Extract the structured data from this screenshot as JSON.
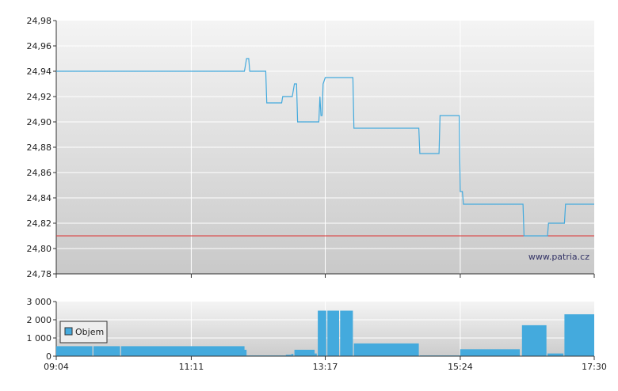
{
  "chart_data": [
    {
      "type": "line",
      "title": "",
      "xlabel": "",
      "ylabel": "",
      "x_ticks": [
        "09:04",
        "11:11",
        "13:17",
        "15:24",
        "17:30"
      ],
      "ylim": [
        24.78,
        24.98
      ],
      "y_ticks": [
        "24,78",
        "24,80",
        "24,82",
        "24,84",
        "24,86",
        "24,88",
        "24,90",
        "24,92",
        "24,94",
        "24,96",
        "24,98"
      ],
      "grid": true,
      "reference_line": {
        "value": 24.81,
        "color": "#dd3333"
      },
      "watermark": "www.patria.cz",
      "series": [
        {
          "color": "#44aadd",
          "points": [
            [
              "09:04",
              24.94
            ],
            [
              "12:01",
              24.94
            ],
            [
              "12:03",
              24.95
            ],
            [
              "12:05",
              24.95
            ],
            [
              "12:06",
              24.94
            ],
            [
              "12:21",
              24.94
            ],
            [
              "12:22",
              24.915
            ],
            [
              "12:36",
              24.915
            ],
            [
              "12:37",
              24.92
            ],
            [
              "12:46",
              24.92
            ],
            [
              "12:48",
              24.93
            ],
            [
              "12:50",
              24.93
            ],
            [
              "12:51",
              24.9
            ],
            [
              "13:11",
              24.9
            ],
            [
              "13:12",
              24.92
            ],
            [
              "13:13",
              24.905
            ],
            [
              "13:14",
              24.905
            ],
            [
              "13:15",
              24.93
            ],
            [
              "13:17",
              24.935
            ],
            [
              "13:43",
              24.935
            ],
            [
              "13:44",
              24.895
            ],
            [
              "14:45",
              24.895
            ],
            [
              "14:46",
              24.875
            ],
            [
              "15:04",
              24.875
            ],
            [
              "15:05",
              24.905
            ],
            [
              "15:23",
              24.905
            ],
            [
              "15:24",
              24.845
            ],
            [
              "15:26",
              24.845
            ],
            [
              "15:27",
              24.835
            ],
            [
              "16:23",
              24.835
            ],
            [
              "16:24",
              24.81
            ],
            [
              "16:46",
              24.81
            ],
            [
              "16:47",
              24.82
            ],
            [
              "17:02",
              24.82
            ],
            [
              "17:03",
              24.835
            ],
            [
              "17:30",
              24.835
            ]
          ]
        }
      ]
    },
    {
      "type": "bar",
      "title": "",
      "xlabel": "",
      "ylabel": "",
      "x_ticks": [
        "09:04",
        "11:11",
        "13:17",
        "15:24",
        "17:30"
      ],
      "ylim": [
        0,
        3000
      ],
      "y_ticks": [
        "0",
        "1 000",
        "2 000",
        "3 000"
      ],
      "grid": true,
      "legend": {
        "position": "left",
        "label": "Objem"
      },
      "series": [
        {
          "name": "Objem",
          "color": "#44aadd",
          "bars": [
            [
              "09:04",
              "09:38",
              550
            ],
            [
              "09:39",
              "10:04",
              550
            ],
            [
              "10:05",
              "12:01",
              550
            ],
            [
              "12:01",
              "12:03",
              350
            ],
            [
              "12:03",
              "12:40",
              40
            ],
            [
              "12:40",
              "12:45",
              80
            ],
            [
              "12:45",
              "12:47",
              120
            ],
            [
              "12:48",
              "12:55",
              350
            ],
            [
              "12:55",
              "13:07",
              350
            ],
            [
              "13:07",
              "13:09",
              150
            ],
            [
              "13:10",
              "13:18",
              2500
            ],
            [
              "13:19",
              "13:30",
              2500
            ],
            [
              "13:31",
              "13:43",
              2500
            ],
            [
              "13:44",
              "14:45",
              700
            ],
            [
              "14:46",
              "15:24",
              40
            ],
            [
              "15:24",
              "16:20",
              380
            ],
            [
              "16:22",
              "16:45",
              1700
            ],
            [
              "16:46",
              "17:01",
              150
            ],
            [
              "17:02",
              "17:30",
              2300
            ]
          ]
        }
      ]
    }
  ]
}
